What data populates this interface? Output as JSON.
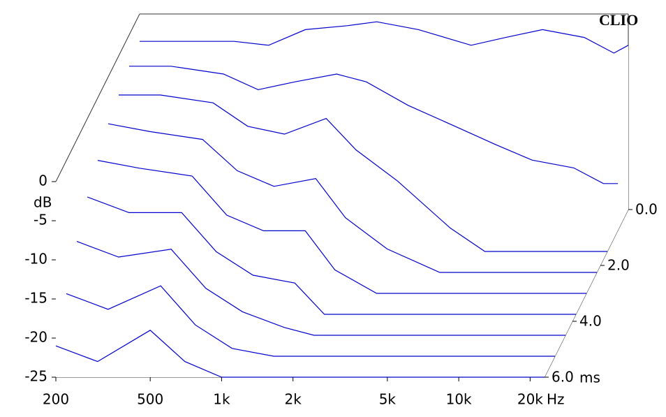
{
  "chart_data": {
    "type": "waterfall",
    "brand": "CLIO",
    "x_unit": "Hz",
    "y_unit": "dB",
    "z_unit": "ms",
    "log_x": true,
    "color": "#0000cc",
    "xlim": [
      200,
      23000
    ],
    "xticks": [
      200,
      500,
      {
        "value": 1000,
        "label": "1k"
      },
      {
        "value": 2000,
        "label": "2k"
      },
      {
        "value": 5000,
        "label": "5k"
      },
      {
        "value": 10000,
        "label": "10k"
      },
      {
        "value": 20000,
        "label": "20k"
      }
    ],
    "ylim": [
      -25,
      0
    ],
    "yticks": [
      0,
      -5,
      -10,
      -15,
      -20,
      -25
    ],
    "zlim": [
      0,
      6
    ],
    "zticks": [
      {
        "value": 0,
        "label": "0.0"
      },
      {
        "value": 2,
        "label": "2.0"
      },
      {
        "value": 4,
        "label": "4.0"
      },
      {
        "value": 6,
        "label": "6.0"
      }
    ],
    "x": [
      200,
      300,
      500,
      700,
      1000,
      1500,
      2000,
      3000,
      5000,
      7000,
      10000,
      15000,
      20000,
      23000
    ],
    "slices": [
      {
        "time": 0,
        "values": [
          -3.5,
          -3.5,
          -3.5,
          -4,
          -2,
          -1.5,
          -1,
          -2,
          -4,
          -3,
          -2,
          -3,
          -5,
          -4
        ]
      },
      {
        "time": 0.75,
        "values": [
          -4,
          -4,
          -5,
          -7,
          -6,
          -5,
          -6,
          -9,
          -12,
          -14,
          -16,
          -17,
          -19,
          -19
        ]
      },
      {
        "time": 1.5,
        "values": [
          -5,
          -5,
          -6,
          -9,
          -10,
          -8,
          -12,
          -16,
          -22,
          -25,
          -25,
          -25,
          -25,
          -25
        ]
      },
      {
        "time": 2.25,
        "values": [
          -6,
          -7,
          -8,
          -12,
          -14,
          -13,
          -18,
          -22,
          -25,
          -25,
          -25,
          -25,
          -25,
          -25
        ]
      },
      {
        "time": 3,
        "values": [
          -8,
          -9,
          -10,
          -15,
          -17,
          -17,
          -22,
          -25,
          -25,
          -25,
          -25,
          -25,
          -25,
          -25
        ]
      },
      {
        "time": 3.75,
        "values": [
          -10,
          -12,
          -12,
          -17,
          -20,
          -21,
          -25,
          -25,
          -25,
          -25,
          -25,
          -25,
          -25,
          -25
        ]
      },
      {
        "time": 4.5,
        "values": [
          -13,
          -15,
          -14,
          -19,
          -22,
          -24,
          -25,
          -25,
          -25,
          -25,
          -25,
          -25,
          -25,
          -25
        ]
      },
      {
        "time": 5.25,
        "values": [
          -17,
          -19,
          -16,
          -21,
          -24,
          -25,
          -25,
          -25,
          -25,
          -25,
          -25,
          -25,
          -25,
          -25
        ]
      },
      {
        "time": 6,
        "values": [
          -21,
          -23,
          -19,
          -23,
          -25,
          -25,
          -25,
          -25,
          -25,
          -25,
          -25,
          -25,
          -25,
          -25
        ]
      }
    ]
  }
}
